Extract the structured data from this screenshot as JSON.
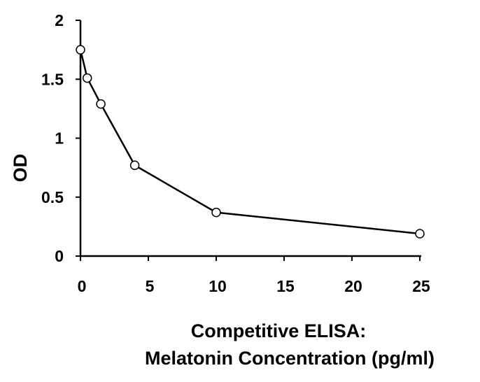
{
  "chart_data": {
    "type": "scatter",
    "title": "",
    "xlabel": [
      "Competitive ELISA:",
      "Melatonin Concentration (pg/ml)"
    ],
    "ylabel": "OD",
    "xlim": [
      0,
      25
    ],
    "ylim": [
      0,
      2
    ],
    "xticks": [
      "0",
      "5",
      "10",
      "15",
      "20",
      "25"
    ],
    "yticks": [
      "0",
      "0.5",
      "1",
      "1.5",
      "2"
    ],
    "grid": false,
    "legend": "none",
    "line_style": "solid black line with open circle markers",
    "series": [
      {
        "x": [
          0,
          0.5,
          1.5,
          4,
          10,
          25
        ],
        "y": [
          1.75,
          1.51,
          1.29,
          0.77,
          0.37,
          0.19
        ]
      }
    ]
  }
}
